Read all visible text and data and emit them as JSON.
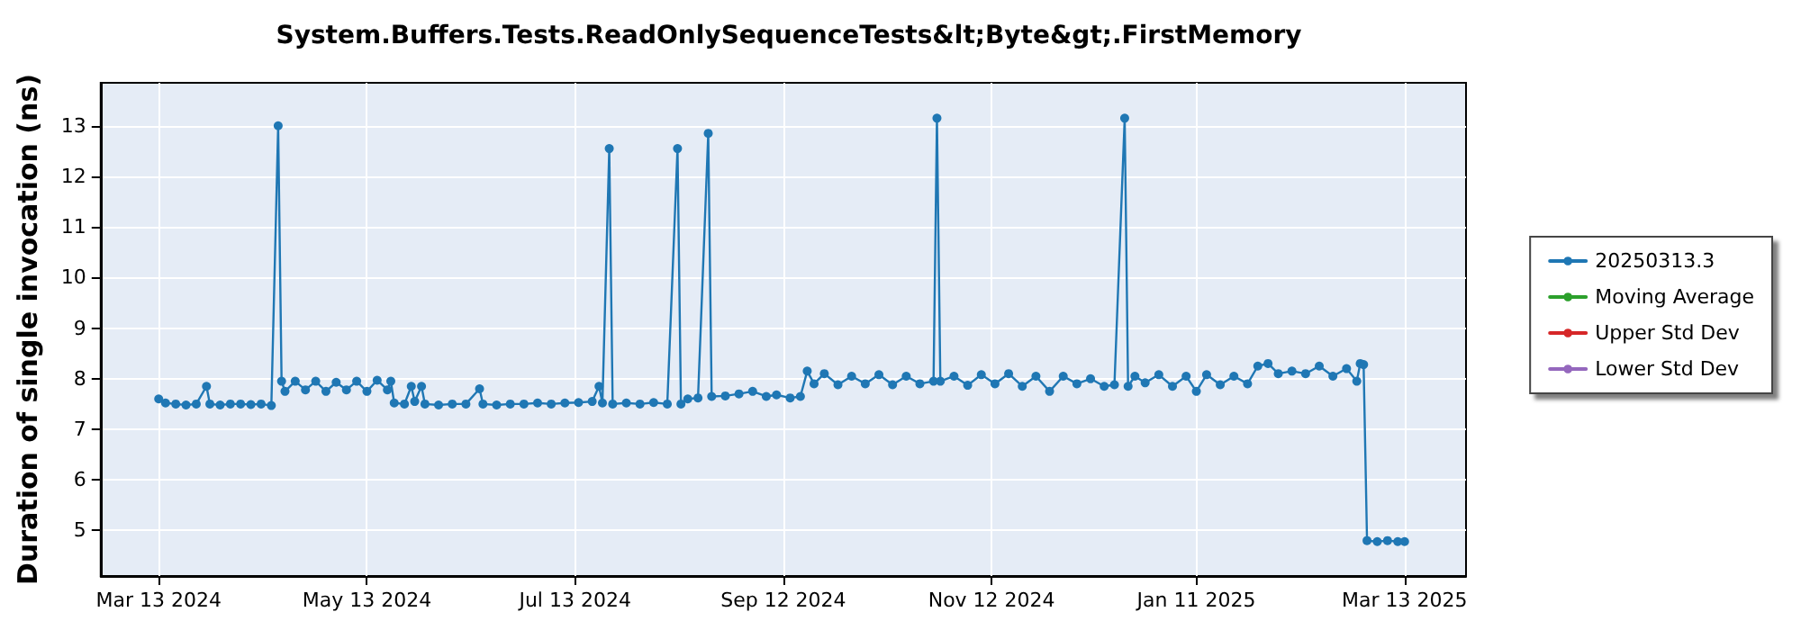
{
  "chart_data": {
    "type": "line",
    "title": "System.Buffers.Tests.ReadOnlySequenceTests&lt;Byte&gt;.FirstMemory",
    "ylabel": "Duration of single invocation (ns)",
    "xlim": [
      "2024-02-25",
      "2025-03-31"
    ],
    "xticks": [
      {
        "value": "2024-03-13",
        "label": "Mar 13 2024"
      },
      {
        "value": "2024-05-13",
        "label": "May 13 2024"
      },
      {
        "value": "2024-07-13",
        "label": "Jul 13 2024"
      },
      {
        "value": "2024-09-12",
        "label": "Sep 12 2024"
      },
      {
        "value": "2024-11-12",
        "label": "Nov 12 2024"
      },
      {
        "value": "2025-01-11",
        "label": "Jan 11 2025"
      },
      {
        "value": "2025-03-13",
        "label": "Mar 13 2025"
      }
    ],
    "ylim": [
      4.1,
      13.85
    ],
    "yticks": [
      5,
      6,
      7,
      8,
      9,
      10,
      11,
      12,
      13
    ],
    "grid": true,
    "legend": "right",
    "marker": "circle",
    "line_style": "solid",
    "series": [
      {
        "name": "20250313.3",
        "color": "#1f77b4",
        "x": [
          "2024-03-13",
          "2024-03-15",
          "2024-03-18",
          "2024-03-21",
          "2024-03-24",
          "2024-03-27",
          "2024-03-28",
          "2024-03-31",
          "2024-04-03",
          "2024-04-06",
          "2024-04-09",
          "2024-04-12",
          "2024-04-15",
          "2024-04-17",
          "2024-04-18",
          "2024-04-19",
          "2024-04-22",
          "2024-04-25",
          "2024-04-28",
          "2024-05-01",
          "2024-05-04",
          "2024-05-07",
          "2024-05-10",
          "2024-05-13",
          "2024-05-16",
          "2024-05-19",
          "2024-05-20",
          "2024-05-21",
          "2024-05-24",
          "2024-05-26",
          "2024-05-27",
          "2024-05-29",
          "2024-05-30",
          "2024-06-03",
          "2024-06-07",
          "2024-06-11",
          "2024-06-15",
          "2024-06-16",
          "2024-06-20",
          "2024-06-24",
          "2024-06-28",
          "2024-07-02",
          "2024-07-06",
          "2024-07-10",
          "2024-07-14",
          "2024-07-18",
          "2024-07-20",
          "2024-07-21",
          "2024-07-23",
          "2024-07-24",
          "2024-07-28",
          "2024-08-01",
          "2024-08-05",
          "2024-08-09",
          "2024-08-12",
          "2024-08-13",
          "2024-08-15",
          "2024-08-18",
          "2024-08-21",
          "2024-08-22",
          "2024-08-26",
          "2024-08-30",
          "2024-09-03",
          "2024-09-07",
          "2024-09-10",
          "2024-09-14",
          "2024-09-17",
          "2024-09-19",
          "2024-09-21",
          "2024-09-24",
          "2024-09-28",
          "2024-10-02",
          "2024-10-06",
          "2024-10-10",
          "2024-10-14",
          "2024-10-18",
          "2024-10-22",
          "2024-10-26",
          "2024-10-27",
          "2024-10-28",
          "2024-11-01",
          "2024-11-05",
          "2024-11-09",
          "2024-11-13",
          "2024-11-17",
          "2024-11-21",
          "2024-11-25",
          "2024-11-29",
          "2024-12-03",
          "2024-12-07",
          "2024-12-11",
          "2024-12-15",
          "2024-12-18",
          "2024-12-21",
          "2024-12-22",
          "2024-12-24",
          "2024-12-27",
          "2024-12-31",
          "2025-01-04",
          "2025-01-08",
          "2025-01-11",
          "2025-01-14",
          "2025-01-18",
          "2025-01-22",
          "2025-01-26",
          "2025-01-29",
          "2025-02-01",
          "2025-02-04",
          "2025-02-08",
          "2025-02-12",
          "2025-02-16",
          "2025-02-20",
          "2025-02-24",
          "2025-02-27",
          "2025-02-28",
          "2025-03-01",
          "2025-03-02",
          "2025-03-05",
          "2025-03-08",
          "2025-03-11",
          "2025-03-13"
        ],
        "values": [
          7.6,
          7.52,
          7.5,
          7.48,
          7.5,
          7.85,
          7.5,
          7.48,
          7.5,
          7.5,
          7.49,
          7.5,
          7.47,
          13.0,
          7.95,
          7.75,
          7.95,
          7.78,
          7.95,
          7.75,
          7.93,
          7.78,
          7.95,
          7.75,
          7.97,
          7.78,
          7.95,
          7.52,
          7.5,
          7.85,
          7.55,
          7.85,
          7.5,
          7.48,
          7.5,
          7.5,
          7.8,
          7.5,
          7.48,
          7.5,
          7.5,
          7.52,
          7.5,
          7.52,
          7.53,
          7.55,
          7.85,
          7.52,
          12.55,
          7.5,
          7.52,
          7.5,
          7.53,
          7.5,
          12.55,
          7.5,
          7.6,
          7.62,
          12.85,
          7.65,
          7.66,
          7.7,
          7.75,
          7.65,
          7.68,
          7.62,
          7.65,
          8.15,
          7.9,
          8.1,
          7.88,
          8.05,
          7.9,
          8.08,
          7.88,
          8.05,
          7.9,
          7.95,
          13.15,
          7.95,
          8.05,
          7.87,
          8.08,
          7.9,
          8.1,
          7.85,
          8.05,
          7.75,
          8.05,
          7.9,
          8.0,
          7.85,
          7.88,
          13.15,
          7.85,
          8.05,
          7.92,
          8.08,
          7.85,
          8.05,
          7.75,
          8.08,
          7.88,
          8.05,
          7.9,
          8.25,
          8.3,
          8.1,
          8.15,
          8.1,
          8.25,
          8.05,
          8.2,
          7.95,
          8.3,
          8.28,
          4.8,
          4.78,
          4.8,
          4.78,
          4.78
        ]
      },
      {
        "name": "Moving Average",
        "color": "#2ca02c"
      },
      {
        "name": "Upper Std Dev",
        "color": "#d62728"
      },
      {
        "name": "Lower Std Dev",
        "color": "#9467bd"
      }
    ]
  }
}
